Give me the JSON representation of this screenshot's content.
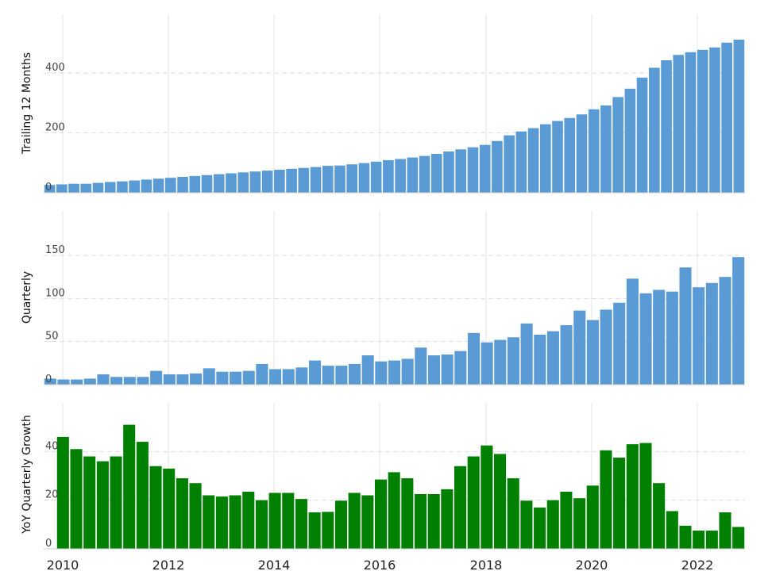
{
  "chart_data": [
    {
      "type": "bar",
      "ylabel": "Trailing 12 Months",
      "ylim": [
        0,
        520
      ],
      "yticks": [
        0,
        200,
        400
      ],
      "color": "#5b9bd5",
      "values": [
        26,
        28,
        30,
        30,
        33,
        36,
        38,
        41,
        44,
        47,
        50,
        53,
        56,
        59,
        62,
        65,
        68,
        71,
        74,
        77,
        80,
        83,
        86,
        90,
        91,
        95,
        99,
        104,
        109,
        113,
        118,
        123,
        130,
        138,
        145,
        152,
        160,
        173,
        192,
        205,
        216,
        229,
        240,
        250,
        262,
        279,
        292,
        320,
        348,
        385,
        418,
        443,
        461,
        470,
        478,
        486,
        502,
        512
      ]
    },
    {
      "type": "bar",
      "ylabel": "Quarterly",
      "ylim": [
        0,
        150
      ],
      "yticks": [
        0,
        50,
        100,
        150
      ],
      "color": "#5b9bd5",
      "values": [
        7,
        6,
        6,
        7,
        12,
        9,
        9,
        9,
        16,
        12,
        12,
        13,
        19,
        15,
        15,
        16,
        24,
        18,
        18,
        20,
        28,
        22,
        22,
        24,
        34,
        27,
        28,
        30,
        43,
        34,
        35,
        39,
        60,
        49,
        52,
        55,
        71,
        58,
        62,
        69,
        86,
        75,
        87,
        95,
        123,
        106,
        110,
        108,
        136,
        113,
        118,
        125,
        148
      ]
    },
    {
      "type": "bar",
      "ylabel": "YoY Quarterly Growth",
      "ylim": [
        0,
        60
      ],
      "yticks": [
        0,
        20,
        40
      ],
      "color": "#008000",
      "values": [
        46,
        41,
        38,
        36,
        38,
        51,
        44,
        34,
        33,
        29,
        27,
        22,
        21.5,
        22,
        23.5,
        20,
        23,
        23,
        20.5,
        15,
        15.2,
        19.8,
        23,
        22,
        28.5,
        31.5,
        29,
        22.5,
        22.5,
        24.5,
        34,
        38,
        42.5,
        39,
        29,
        19.8,
        17,
        20,
        23.5,
        20.8,
        26,
        40.5,
        37.5,
        43,
        43.5,
        27,
        15.5,
        9.5,
        7.5,
        7.5,
        15,
        9
      ]
    }
  ],
  "x_axis": {
    "labels": [
      "2010",
      "2012",
      "2014",
      "2016",
      "2018",
      "2020",
      "2022"
    ]
  }
}
